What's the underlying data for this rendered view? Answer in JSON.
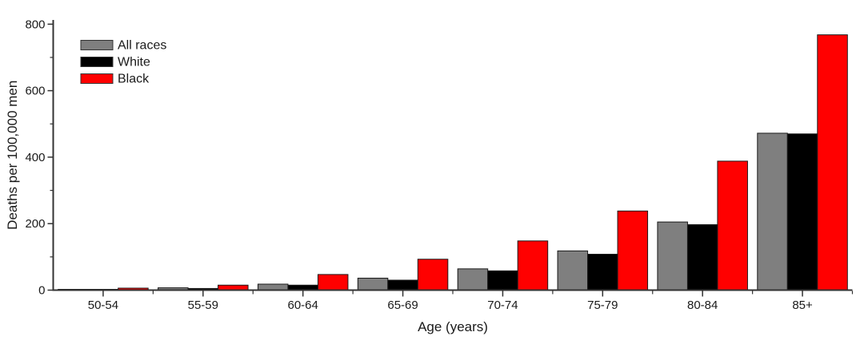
{
  "figure": {
    "background": "#ffffff",
    "axis_color": "#333333",
    "text_color": "#1a1a1a"
  },
  "chart_data": {
    "type": "bar",
    "title": "",
    "xlabel": "Age (years)",
    "ylabel": "Deaths per 100,000 men",
    "categories": [
      "50-54",
      "55-59",
      "60-64",
      "65-69",
      "70-74",
      "75-79",
      "80-84",
      "85+"
    ],
    "series": [
      {
        "name": "All races",
        "color": "#7f7f7f",
        "values": [
          2,
          7,
          18,
          36,
          64,
          118,
          205,
          472
        ]
      },
      {
        "name": "White",
        "color": "#000000",
        "values": [
          1,
          5,
          15,
          30,
          58,
          108,
          197,
          470
        ]
      },
      {
        "name": "Black",
        "color": "#ff0000",
        "values": [
          6,
          15,
          47,
          93,
          148,
          238,
          388,
          768
        ]
      }
    ],
    "ylim": [
      0,
      800
    ],
    "y_major_ticks": [
      0,
      200,
      400,
      600,
      800
    ],
    "y_minor_ticks": [
      100,
      300,
      500,
      700
    ],
    "grid": false,
    "legend_position": "top-left",
    "bar_border_color": "#1a1a1a"
  }
}
